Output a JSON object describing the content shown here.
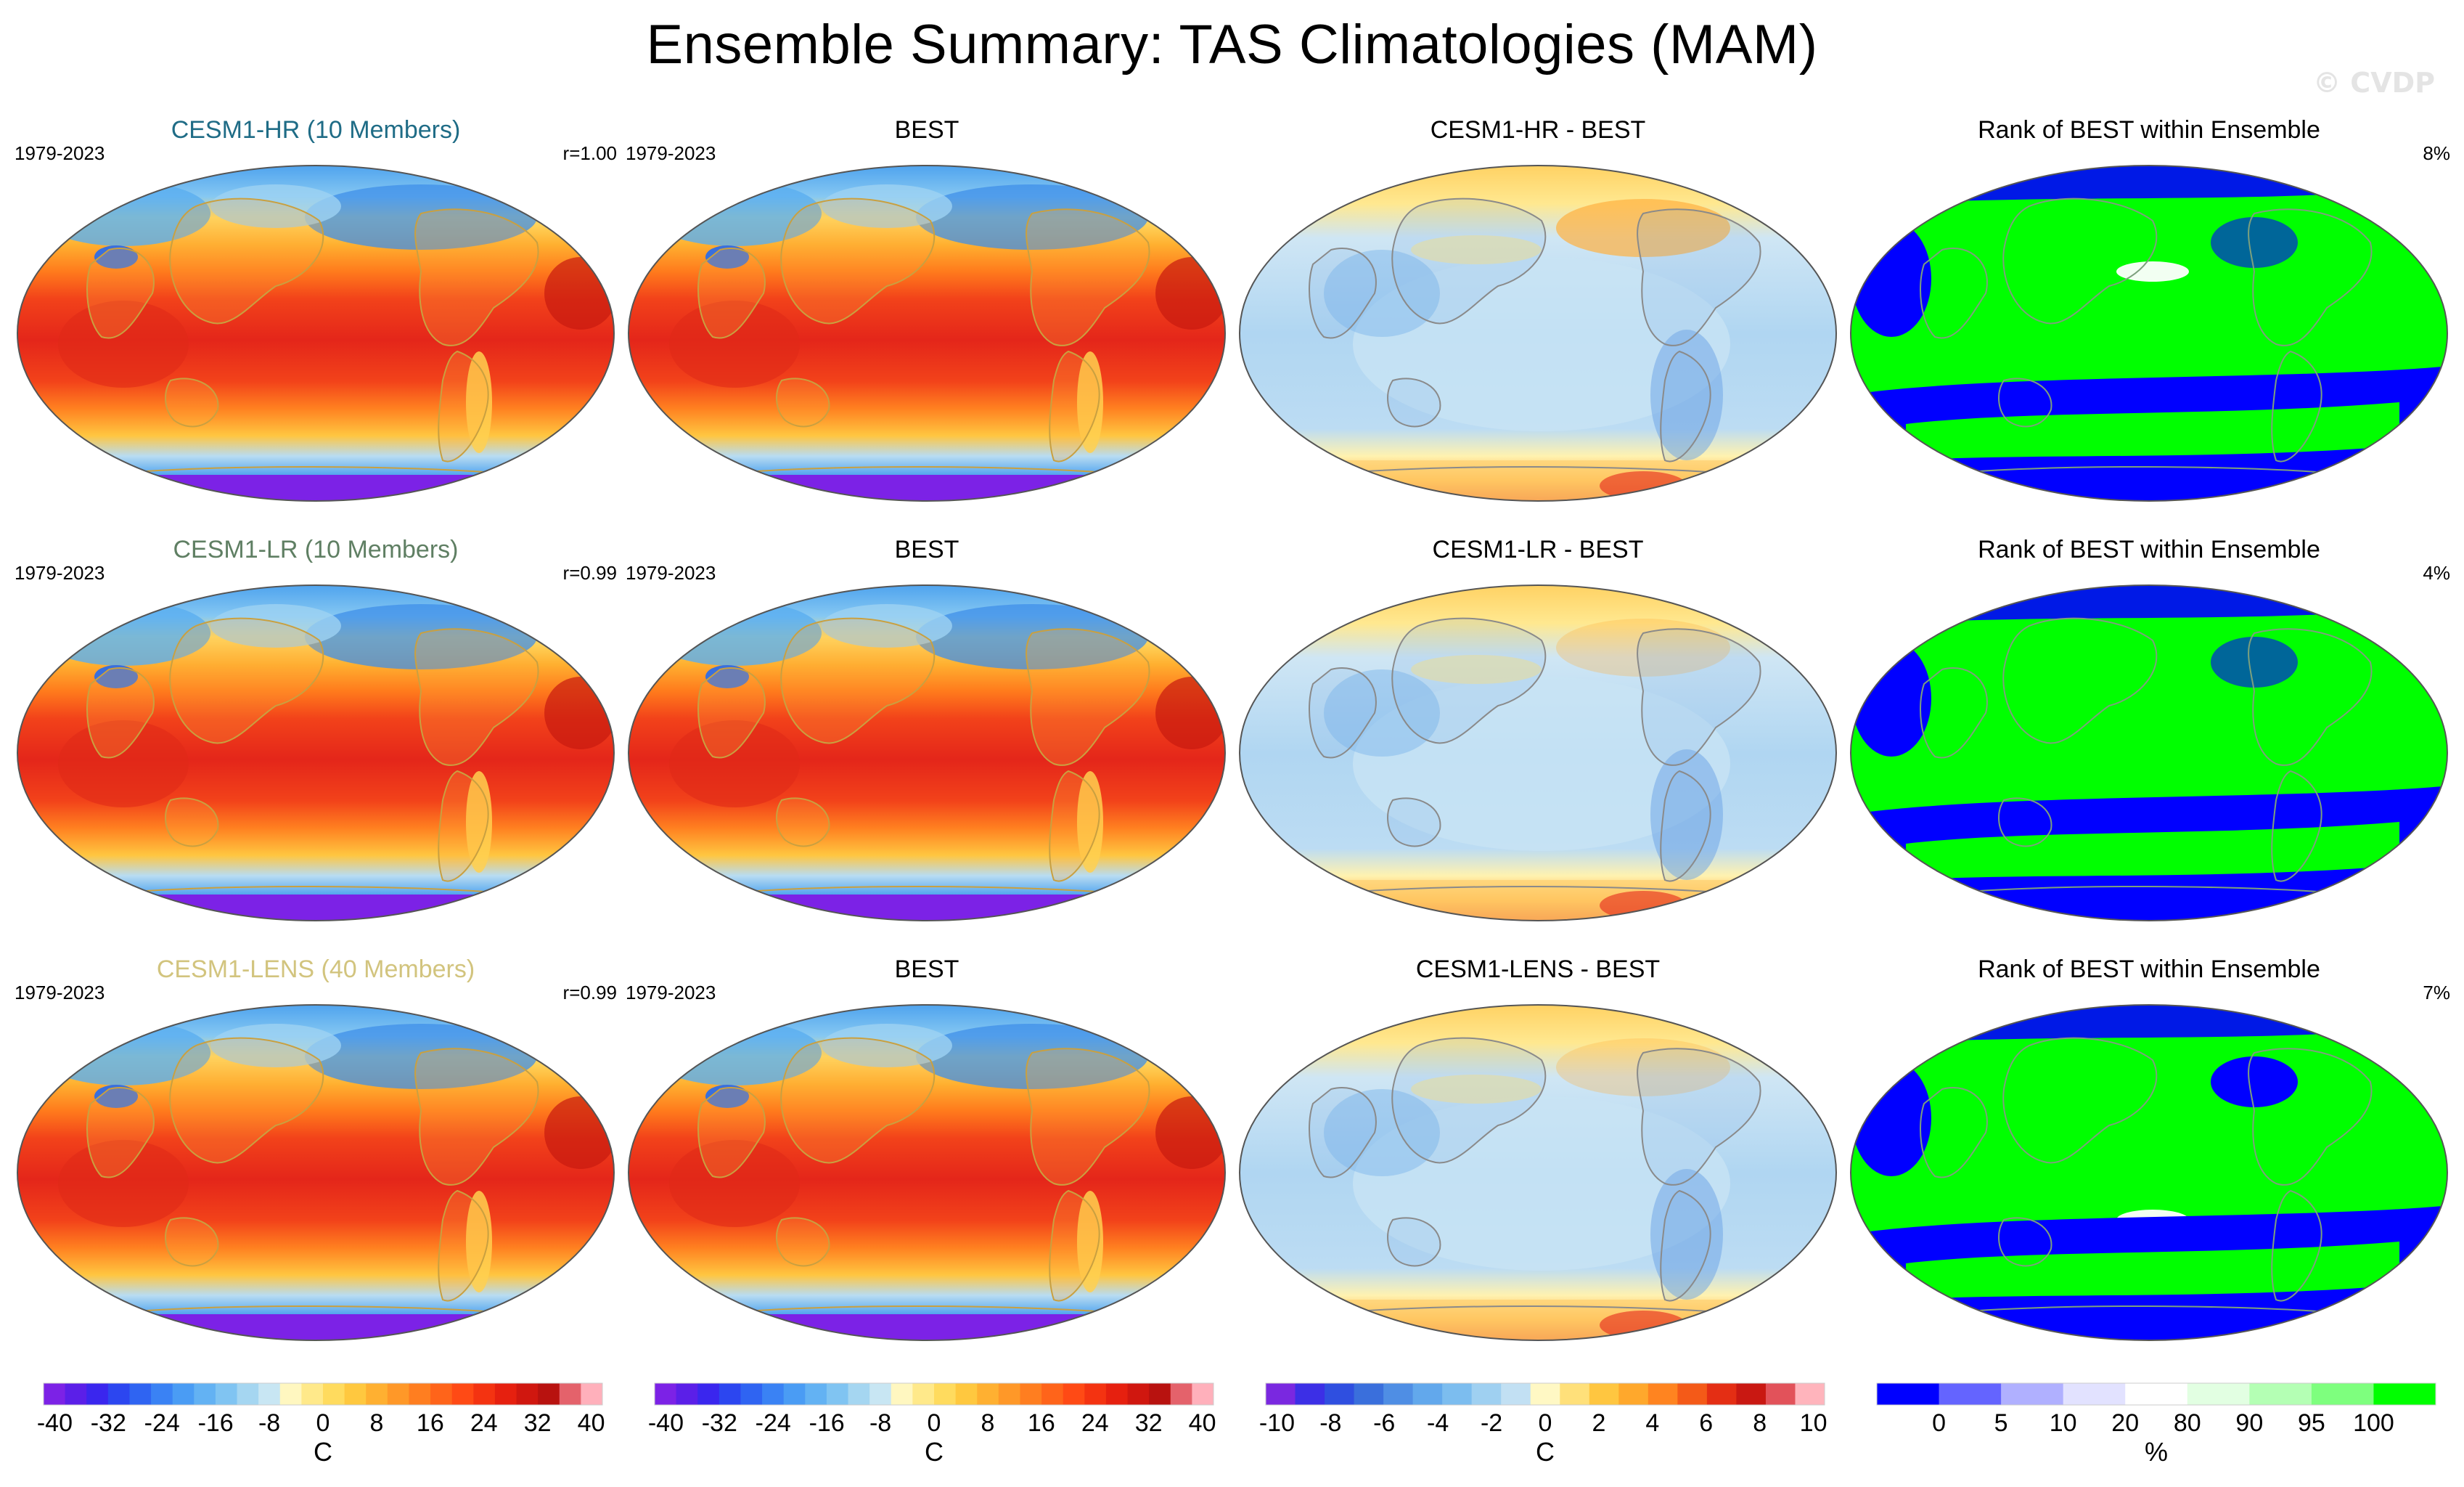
{
  "title": "Ensemble Summary: TAS Climatologies (MAM)",
  "watermark": "© CVDP",
  "rows": [
    {
      "ensemble": {
        "label": "CESM1-HR (10 Members)",
        "color": "#1f6c86",
        "period": "1979-2023",
        "corr": "r=1.00"
      },
      "obs": {
        "label": "BEST",
        "period": "1979-2023"
      },
      "diff": {
        "label": "CESM1-HR - BEST"
      },
      "rank": {
        "label": "Rank of BEST within Ensemble",
        "pct": "8%"
      }
    },
    {
      "ensemble": {
        "label": "CESM1-LR (10 Members)",
        "color": "#5f7f63",
        "period": "1979-2023",
        "corr": "r=0.99"
      },
      "obs": {
        "label": "BEST",
        "period": "1979-2023"
      },
      "diff": {
        "label": "CESM1-LR - BEST"
      },
      "rank": {
        "label": "Rank of BEST within Ensemble",
        "pct": "4%"
      }
    },
    {
      "ensemble": {
        "label": "CESM1-LENS (40 Members)",
        "color": "#d2c47e",
        "period": "1979-2023",
        "corr": "r=0.99"
      },
      "obs": {
        "label": "BEST",
        "period": "1979-2023"
      },
      "diff": {
        "label": "CESM1-LENS - BEST"
      },
      "rank": {
        "label": "Rank of BEST within Ensemble",
        "pct": "7%"
      }
    }
  ],
  "colorbars": [
    {
      "ticks": [
        "-40",
        "-32",
        "-24",
        "-16",
        "-8",
        "0",
        "8",
        "16",
        "24",
        "32",
        "40"
      ],
      "unit": "C",
      "colors": [
        "#7c22e6",
        "#5b1fe8",
        "#3a26ee",
        "#2c46f0",
        "#2f64f2",
        "#3a82f4",
        "#4a9cf4",
        "#63b2f3",
        "#80c4f2",
        "#a5d6f1",
        "#c8e6f3",
        "#fff7c0",
        "#ffe98a",
        "#ffdb5e",
        "#ffc83f",
        "#ffb031",
        "#ff9828",
        "#ff7e20",
        "#ff641a",
        "#ff4a15",
        "#f43311",
        "#e6200f",
        "#d0170f",
        "#b8120f",
        "#e4626b",
        "#ffb0bb"
      ]
    },
    {
      "ticks": [
        "-40",
        "-32",
        "-24",
        "-16",
        "-8",
        "0",
        "8",
        "16",
        "24",
        "32",
        "40"
      ],
      "unit": "C",
      "colors": [
        "#7c22e6",
        "#5b1fe8",
        "#3a26ee",
        "#2c46f0",
        "#2f64f2",
        "#3a82f4",
        "#4a9cf4",
        "#63b2f3",
        "#80c4f2",
        "#a5d6f1",
        "#c8e6f3",
        "#fff7c0",
        "#ffe98a",
        "#ffdb5e",
        "#ffc83f",
        "#ffb031",
        "#ff9828",
        "#ff7e20",
        "#ff641a",
        "#ff4a15",
        "#f43311",
        "#e6200f",
        "#d0170f",
        "#b8120f",
        "#e4626b",
        "#ffb0bb"
      ]
    },
    {
      "ticks": [
        "-10",
        "-8",
        "-6",
        "-4",
        "-2",
        "0",
        "2",
        "4",
        "6",
        "8",
        "10"
      ],
      "unit": "C",
      "colors": [
        "#7a28e0",
        "#3c2fe6",
        "#2f4fe0",
        "#3a6fdc",
        "#4f8ee4",
        "#62a8ec",
        "#7cbdef",
        "#9fd0f1",
        "#c2e0f3",
        "#fff8c4",
        "#ffe07a",
        "#ffc640",
        "#ffa82c",
        "#ff8420",
        "#f45a18",
        "#e42e14",
        "#c91812",
        "#e2525a",
        "#ffb4bc"
      ]
    },
    {
      "ticks": [
        "0",
        "5",
        "10",
        "20",
        "80",
        "90",
        "95",
        "100"
      ],
      "unit": "%",
      "colors": [
        "#0000ff",
        "#6464ff",
        "#b0b0ff",
        "#e2e2ff",
        "#ffffff",
        "#e2ffe2",
        "#b4ffb4",
        "#7eff7e",
        "#00ff00"
      ]
    }
  ]
}
